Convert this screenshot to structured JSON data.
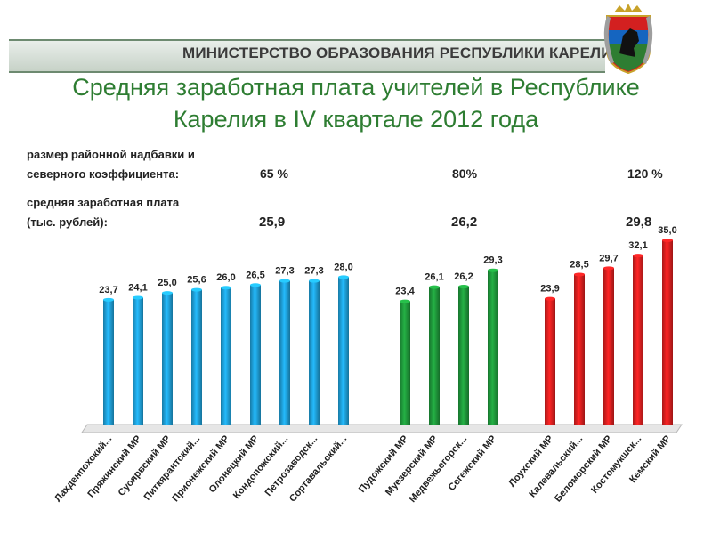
{
  "header": {
    "ministry": "МИНИСТЕРСТВО ОБРАЗОВАНИЯ РЕСПУБЛИКИ КАРЕЛИЯ",
    "emblem_icon": "karelia-coat-of-arms"
  },
  "title_line1": "Средняя заработная плата учителей в Республике",
  "title_line2": "Карелия в IV квартале 2012 года",
  "info": {
    "allowance_label_1": "размер районной надбавки и",
    "allowance_label_2": "северного коэффициента:",
    "salary_label_1": "средняя заработная плата",
    "salary_label_2": "(тыс. рублей):",
    "groups": [
      {
        "allowance": "65 %",
        "avg": "25,9"
      },
      {
        "allowance": "80%",
        "avg": "26,2"
      },
      {
        "allowance": "120 %",
        "avg": "29,8"
      }
    ]
  },
  "chart_data": {
    "type": "bar",
    "ylim": [
      0,
      35
    ],
    "grid": false,
    "colors": {
      "group1": "#1fa3dc",
      "group2": "#1f9a3c",
      "group3": "#e02020"
    },
    "categories": [
      "Лахденпохский...",
      "Пряжинский МР",
      "Суоярвский МР",
      "Питкярантский...",
      "Прионежский МР",
      "Олонецкий МР",
      "Кондопожский...",
      "Петрозаводск...",
      "Сортавальский...",
      "Пудожский МР",
      "Муезерский МР",
      "Медвежьегорск...",
      "Сегежский МР",
      "Лоухский МР",
      "Калевальский...",
      "Беломорский МР",
      "Костомукшск...",
      "Кемский МР"
    ],
    "value_labels": [
      "23,7",
      "24,1",
      "25,0",
      "25,6",
      "26,0",
      "26,5",
      "27,3",
      "27,3",
      "28,0",
      "23,4",
      "26,1",
      "26,2",
      "29,3",
      "23,9",
      "28,5",
      "29,7",
      "32,1",
      "35,0"
    ],
    "values": [
      23.7,
      24.1,
      25.0,
      25.6,
      26.0,
      26.5,
      27.3,
      27.3,
      28.0,
      23.4,
      26.1,
      26.2,
      29.3,
      23.9,
      28.5,
      29.7,
      32.1,
      35.0
    ],
    "groups": [
      0,
      0,
      0,
      0,
      0,
      0,
      0,
      0,
      0,
      1,
      1,
      1,
      1,
      2,
      2,
      2,
      2,
      2
    ]
  }
}
